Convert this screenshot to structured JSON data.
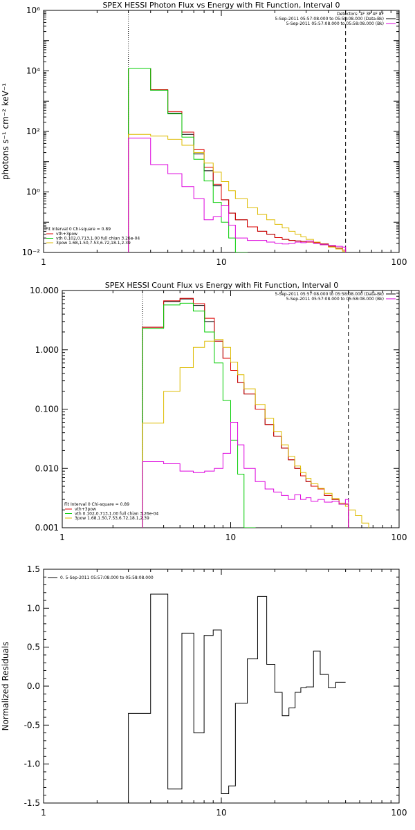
{
  "chart_data": [
    {
      "type": "line",
      "title": "SPEX HESSI Photon Flux vs Energy with Fit Function, Interval 0",
      "ylabel": "photons s⁻¹ cm⁻² keV⁻¹",
      "xlabel": "",
      "xscale": "log",
      "yscale": "log",
      "xlim": [
        1,
        100
      ],
      "ylim": [
        0.01,
        1000000
      ],
      "xticks": [
        1,
        10,
        100
      ],
      "xtick_labels": [
        "1",
        "10",
        "100"
      ],
      "yticks": [
        0.01,
        1,
        100,
        10000,
        1000000
      ],
      "ytick_labels": [
        "10⁻²",
        "10⁰",
        "10²",
        "10⁴",
        "10⁶"
      ],
      "vlines": [
        {
          "x": 3,
          "style": "dotted"
        },
        {
          "x": 50,
          "style": "dashed"
        }
      ],
      "header_lines": [
        "Detectors: 1F 3F 4F 8F",
        "5-Sep-2011 05:57:08.000 to 05:58:08.000 (Data-Bk)",
        "5-Sep-2011 05:57:08.000 to 05:58:08.000 (Bk)"
      ],
      "header_colors": [
        "#000000",
        "#dd00dd"
      ],
      "legend": {
        "position": "bottom-left",
        "header": "Fit Interval 0   Chi-square = 0.89",
        "entries": [
          {
            "label": "vth+3pow",
            "color": "#dd0000"
          },
          {
            "label": "vth 0.102,0.713,1.00  full chian 3.26e-04",
            "color": "#00cc00"
          },
          {
            "label": "3pow 1.68,1.50,7.53,6.72,18.1,2.39",
            "color": "#ddbb00"
          }
        ]
      },
      "bin_edges": [
        3,
        4,
        5,
        6,
        7,
        8,
        9,
        10,
        11,
        12,
        14,
        16,
        18,
        20,
        22,
        24,
        26,
        28,
        30,
        33,
        36,
        40,
        44,
        48,
        50
      ],
      "series": [
        {
          "name": "",
          "color": "#000000",
          "values": [
            12000,
            2300,
            400,
            80,
            18,
            5,
            1.6,
            0.55,
            0.2,
            0.12,
            0.07,
            0.05,
            0.04,
            0.031,
            0.027,
            0.025,
            0.024,
            0.023,
            0.022,
            0.021,
            0.019,
            0.016,
            0.014,
            0.012
          ]
        },
        {
          "name": "",
          "color": "#dd0000",
          "values": [
            12000,
            2400,
            450,
            95,
            25,
            6.5,
            1.8,
            0.55,
            0.2,
            0.12,
            0.07,
            0.05,
            0.04,
            0.031,
            0.027,
            0.025,
            0.024,
            0.023,
            0.022,
            0.021,
            0.019,
            0.016,
            0.014,
            0.012
          ]
        },
        {
          "name": "",
          "color": "#00cc00",
          "values": [
            12000,
            2300,
            380,
            65,
            12,
            2.3,
            0.45,
            0.1,
            0.03,
            0.01
          ]
        },
        {
          "name": "",
          "color": "#ddbb00",
          "values": [
            80,
            70,
            55,
            35,
            20,
            9,
            4.5,
            2.2,
            1.1,
            0.6,
            0.3,
            0.18,
            0.12,
            0.085,
            0.065,
            0.05,
            0.04,
            0.033,
            0.027,
            0.022,
            0.018,
            0.015,
            0.013,
            0.011
          ]
        },
        {
          "name": "",
          "color": "#dd00dd",
          "values": [
            60,
            8,
            4,
            1.5,
            0.6,
            0.12,
            0.15,
            0.35,
            0.08,
            0.03,
            0.025,
            0.025,
            0.022,
            0.02,
            0.019,
            0.02,
            0.022,
            0.021,
            0.024,
            0.02,
            0.018,
            0.017,
            0.016,
            0.015
          ]
        }
      ]
    },
    {
      "type": "line",
      "title": "SPEX HESSI Count Flux vs Energy with Fit Function, Interval 0",
      "ylabel": "",
      "xlabel": "",
      "xscale": "log",
      "yscale": "log",
      "xlim": [
        1,
        100
      ],
      "ylim": [
        0.001,
        10
      ],
      "xticks": [
        1,
        10,
        100
      ],
      "xtick_labels": [
        "1",
        "10",
        "100"
      ],
      "yticks": [
        0.001,
        0.01,
        0.1,
        1,
        10
      ],
      "ytick_labels": [
        "0.001",
        "0.010",
        "0.100",
        "1.000",
        "10.000"
      ],
      "vlines": [
        {
          "x": 3,
          "style": "dotted"
        },
        {
          "x": 50,
          "style": "dashed"
        }
      ],
      "header_lines": [
        "5-Sep-2011 05:57:08.000 to 05:58:08.000 (Data-Bk)",
        "5-Sep-2011 05:57:08.000 to 05:58:08.000 (Bk)"
      ],
      "header_colors": [
        "#000000",
        "#dd00dd"
      ],
      "legend": {
        "position": "bottom-left",
        "header": "Fit Interval 0   Chi-square = 0.89",
        "entries": [
          {
            "label": "vth+3pow",
            "color": "#dd0000"
          },
          {
            "label": "vth 0.102,0.713,1.00  full chian 3.26e-04",
            "color": "#00cc00"
          },
          {
            "label": "3pow 1.68,1.50,7.53,6.72,18.1,2.39",
            "color": "#ddbb00"
          }
        ]
      },
      "bin_edges": [
        3,
        4,
        5,
        6,
        7,
        8,
        9,
        10,
        11,
        12,
        14,
        16,
        18,
        20,
        22,
        24,
        26,
        28,
        30,
        33,
        36,
        40,
        44,
        48,
        50,
        55,
        60,
        66
      ],
      "series": [
        {
          "name": "",
          "color": "#000000",
          "values": [
            2.4,
            6.5,
            7.2,
            5.6,
            3.0,
            1.4,
            0.72,
            0.45,
            0.28,
            0.18,
            0.1,
            0.055,
            0.035,
            0.022,
            0.014,
            0.01,
            0.0075,
            0.006,
            0.005,
            0.0045,
            0.0035,
            0.003,
            0.0025,
            0.0025
          ]
        },
        {
          "name": "",
          "color": "#dd0000",
          "values": [
            2.4,
            6.7,
            7.4,
            6.0,
            3.4,
            1.4,
            0.72,
            0.45,
            0.28,
            0.18,
            0.1,
            0.055,
            0.035,
            0.022,
            0.014,
            0.01,
            0.0075,
            0.006,
            0.005,
            0.0045,
            0.0035,
            0.003,
            0.0025,
            0.0025
          ]
        },
        {
          "name": "",
          "color": "#00cc00",
          "values": [
            2.3,
            5.7,
            6.1,
            4.5,
            2.0,
            0.6,
            0.14,
            0.03,
            0.008,
            0.001
          ]
        },
        {
          "name": "",
          "color": "#ddbb00",
          "values": [
            0.058,
            0.2,
            0.5,
            1.1,
            1.4,
            1.5,
            1.1,
            0.62,
            0.38,
            0.22,
            0.12,
            0.07,
            0.042,
            0.025,
            0.016,
            0.011,
            0.0085,
            0.0068,
            0.0055,
            0.0046,
            0.0038,
            0.0031,
            0.0026,
            0.0023,
            0.002,
            0.0016,
            0.0012
          ]
        },
        {
          "name": "",
          "color": "#dd00dd",
          "values": [
            0.013,
            0.012,
            0.009,
            0.0085,
            0.009,
            0.01,
            0.018,
            0.06,
            0.025,
            0.01,
            0.006,
            0.0045,
            0.004,
            0.0035,
            0.003,
            0.0036,
            0.003,
            0.0032,
            0.0028,
            0.003,
            0.0027,
            0.0028,
            0.0025,
            0.003
          ]
        }
      ]
    },
    {
      "type": "line",
      "title": "",
      "ylabel": "Normalized Residuals",
      "xlabel": "",
      "xscale": "log",
      "yscale": "linear",
      "xlim": [
        1,
        100
      ],
      "ylim": [
        -1.5,
        1.5
      ],
      "xticks": [
        1,
        10,
        100
      ],
      "xtick_labels": [
        "1",
        "10",
        "100"
      ],
      "yticks": [
        -1.5,
        -1.0,
        -0.5,
        0.0,
        0.5,
        1.0,
        1.5
      ],
      "ytick_labels": [
        "-1.5",
        "-1.0",
        "-0.5",
        "0.0",
        "0.5",
        "1.0",
        "1.5"
      ],
      "legend": {
        "position": "top-left",
        "entries": [
          {
            "label": "0. 5-Sep-2011 05:57:08.000 to 05:58:08.000",
            "color": "#000000"
          }
        ]
      },
      "bin_edges": [
        3,
        4,
        5,
        6,
        7,
        8,
        9,
        10,
        11,
        12,
        14,
        16,
        18,
        20,
        22,
        24,
        26,
        28,
        30,
        33,
        36,
        40,
        44,
        48,
        50
      ],
      "series": [
        {
          "name": "",
          "color": "#000000",
          "values": [
            -0.35,
            1.18,
            -1.32,
            0.68,
            -0.6,
            0.65,
            0.72,
            -1.38,
            -1.28,
            -0.22,
            0.35,
            1.15,
            0.28,
            -0.08,
            -0.38,
            -0.28,
            -0.08,
            -0.02,
            -0.01,
            0.45,
            0.15,
            -0.02,
            0.05,
            0.05
          ]
        }
      ]
    }
  ]
}
